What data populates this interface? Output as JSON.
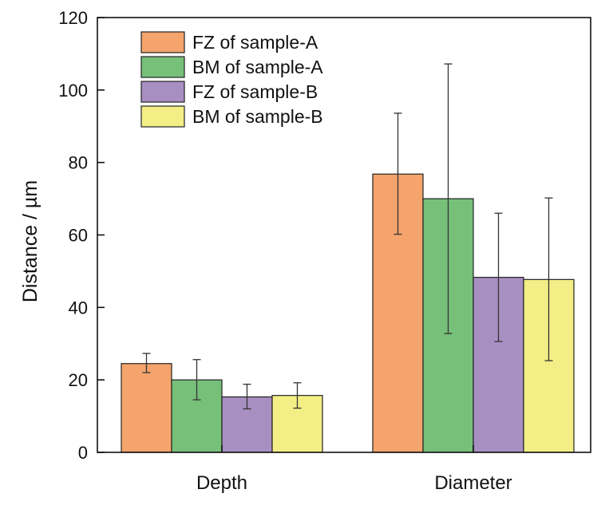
{
  "chart_data": {
    "type": "bar",
    "categories": [
      "Depth",
      "Diameter"
    ],
    "ylabel": "Distance / µm",
    "ylim": [
      0,
      120
    ],
    "yticks": [
      0,
      20,
      40,
      60,
      80,
      100,
      120
    ],
    "grid": false,
    "legend_position": "top-left",
    "series": [
      {
        "name": "FZ of sample-A",
        "color": "#f4a46c",
        "values": [
          24.5,
          76.8
        ],
        "error_low": [
          22.0,
          60.2
        ],
        "error_high": [
          27.3,
          93.6
        ]
      },
      {
        "name": "BM of sample-A",
        "color": "#77c07a",
        "values": [
          20.0,
          70.0
        ],
        "error_low": [
          14.5,
          32.8
        ],
        "error_high": [
          25.6,
          107.2
        ]
      },
      {
        "name": "FZ of sample-B",
        "color": "#a88fc2",
        "values": [
          15.3,
          48.3
        ],
        "error_low": [
          12.0,
          30.6
        ],
        "error_high": [
          18.8,
          66.0
        ]
      },
      {
        "name": "BM of sample-B",
        "color": "#f3ef86",
        "values": [
          15.7,
          47.7
        ],
        "error_low": [
          12.2,
          25.3
        ],
        "error_high": [
          19.2,
          70.2
        ]
      }
    ]
  }
}
